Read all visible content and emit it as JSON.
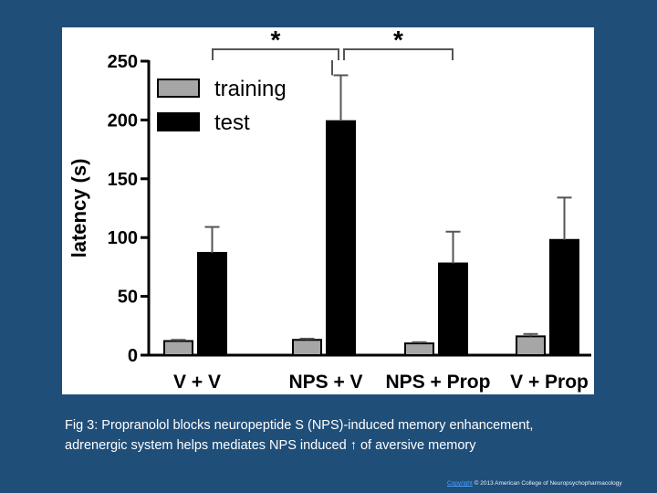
{
  "colors": {
    "background": "#1f4e79",
    "training": "#a6a6a6",
    "test": "#000000"
  },
  "chart_data": {
    "type": "bar",
    "categories": [
      "V + V",
      "NPS + V",
      "NPS + Prop",
      "V + Prop"
    ],
    "series": [
      {
        "name": "training",
        "values": [
          12,
          13,
          10,
          16
        ],
        "errors": [
          1,
          1,
          1,
          2
        ]
      },
      {
        "name": "test",
        "values": [
          87,
          199,
          78,
          98
        ],
        "errors": [
          22,
          39,
          27,
          36
        ]
      }
    ],
    "ylabel": "latency (s)",
    "xlabel": "",
    "ylim": [
      0,
      250
    ],
    "yticks": [
      0,
      50,
      100,
      150,
      200,
      250
    ],
    "legend": "top-left",
    "significance": [
      {
        "from": "V + V",
        "to": "NPS + V",
        "label": "*"
      },
      {
        "from": "NPS + V",
        "to": "NPS + Prop",
        "label": "*"
      }
    ]
  },
  "caption": {
    "line1": "Fig 3: Propranolol blocks neuropeptide S (NPS)-induced memory enhancement,",
    "line2": "adrenergic system helps mediates NPS induced ↑ of aversive memory"
  },
  "footer": {
    "link_text": "Copyright",
    "text": "© 2013 American College of Neuropsychopharmacology"
  }
}
